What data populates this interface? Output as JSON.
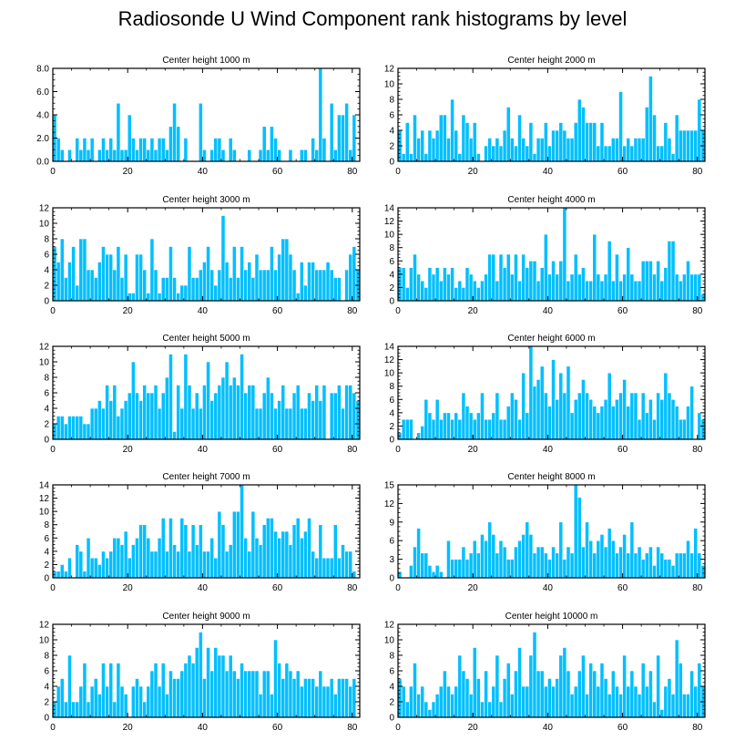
{
  "page_title": "Radiosonde U Wind Component rank histograms by level",
  "colors": {
    "bar": "#00bfff",
    "bar_edge": "#ffffff",
    "axis": "#000000"
  },
  "chart_data": [
    {
      "type": "bar",
      "title": "Center height 1000 m",
      "xlim": [
        0,
        82
      ],
      "ylim": [
        0,
        8
      ],
      "yticks": [
        0,
        2,
        4,
        6,
        8
      ],
      "ytick_labels": [
        "0.0",
        "2.0",
        "4.0",
        "6.0",
        "8.0"
      ],
      "xticks": [
        0,
        20,
        40,
        60,
        80
      ],
      "values": [
        4,
        2,
        1,
        0,
        1,
        0,
        2,
        1,
        2,
        1,
        2,
        0,
        1,
        2,
        1,
        2,
        1,
        5,
        1,
        1,
        4,
        2,
        1,
        2,
        2,
        1,
        2,
        1,
        2,
        2,
        1,
        3,
        5,
        3,
        0,
        2,
        0,
        0,
        0,
        5,
        1,
        0,
        1,
        2,
        2,
        1,
        0,
        2,
        1,
        0,
        0,
        0,
        1,
        0,
        0,
        1,
        3,
        1,
        3,
        2,
        1,
        0,
        0,
        1,
        0,
        0,
        1,
        1,
        0,
        2,
        1,
        8,
        2,
        0,
        5,
        1,
        4,
        4,
        5,
        1,
        4,
        0
      ]
    },
    {
      "type": "bar",
      "title": "Center height 2000 m",
      "xlim": [
        0,
        82
      ],
      "ylim": [
        0,
        12
      ],
      "yticks": [
        0,
        2,
        4,
        6,
        8,
        10,
        12
      ],
      "ytick_labels": [
        "0",
        "2",
        "4",
        "6",
        "8",
        "10",
        "12"
      ],
      "xticks": [
        0,
        20,
        40,
        60,
        80
      ],
      "values": [
        4,
        1,
        5,
        1,
        6,
        3,
        4,
        1,
        4,
        3,
        4,
        6,
        6,
        3,
        8,
        4,
        1,
        6,
        5,
        3,
        5,
        1,
        0,
        2,
        3,
        2,
        3,
        2,
        4,
        7,
        3,
        2,
        6,
        3,
        2,
        5,
        1,
        3,
        3,
        5,
        2,
        4,
        4,
        5,
        4,
        3,
        3,
        5,
        8,
        7,
        5,
        5,
        5,
        2,
        5,
        2,
        2,
        3,
        3,
        9,
        2,
        3,
        2,
        3,
        3,
        3,
        7,
        11,
        6,
        2,
        2,
        5,
        3,
        1,
        6,
        4,
        4,
        4,
        4,
        4,
        8,
        4
      ]
    },
    {
      "type": "bar",
      "title": "Center height 3000 m",
      "xlim": [
        0,
        82
      ],
      "ylim": [
        0,
        12
      ],
      "yticks": [
        0,
        2,
        4,
        6,
        8,
        10,
        12
      ],
      "ytick_labels": [
        "0",
        "2",
        "4",
        "6",
        "8",
        "10",
        "12"
      ],
      "xticks": [
        0,
        20,
        40,
        60,
        80
      ],
      "values": [
        7,
        5,
        8,
        3,
        5,
        7,
        2,
        8,
        8,
        4,
        4,
        3,
        5,
        7,
        6,
        6,
        4,
        7,
        3,
        6,
        1,
        1,
        6,
        6,
        4,
        1,
        8,
        4,
        1,
        3,
        3,
        7,
        3,
        1,
        2,
        2,
        7,
        3,
        3,
        4,
        5,
        7,
        4,
        2,
        4,
        11,
        5,
        3,
        7,
        3,
        7,
        4,
        5,
        3,
        6,
        4,
        4,
        4,
        7,
        4,
        6,
        8,
        8,
        6,
        4,
        1,
        5,
        2,
        5,
        5,
        4,
        4,
        4,
        5,
        4,
        3,
        3,
        0,
        4,
        6,
        7,
        4
      ]
    },
    {
      "type": "bar",
      "title": "Center height 4000 m",
      "xlim": [
        0,
        82
      ],
      "ylim": [
        0,
        14
      ],
      "yticks": [
        0,
        2,
        4,
        6,
        8,
        10,
        12,
        14
      ],
      "ytick_labels": [
        "0",
        "2",
        "4",
        "6",
        "8",
        "10",
        "12",
        "14"
      ],
      "xticks": [
        0,
        20,
        40,
        60,
        80
      ],
      "values": [
        5,
        5,
        2,
        5,
        7,
        4,
        3,
        2,
        5,
        4,
        5,
        3,
        5,
        4,
        5,
        2,
        3,
        2,
        5,
        4,
        3,
        2,
        3,
        4,
        7,
        7,
        3,
        7,
        5,
        7,
        4,
        7,
        3,
        7,
        5,
        6,
        6,
        3,
        5,
        10,
        4,
        6,
        4,
        6,
        14,
        3,
        4,
        7,
        4,
        5,
        3,
        3,
        10,
        4,
        3,
        4,
        9,
        3,
        7,
        3,
        4,
        8,
        4,
        3,
        3,
        6,
        6,
        6,
        4,
        6,
        3,
        5,
        9,
        9,
        4,
        3,
        4,
        6,
        4,
        4,
        4,
        1
      ]
    },
    {
      "type": "bar",
      "title": "Center height 5000 m",
      "xlim": [
        0,
        82
      ],
      "ylim": [
        0,
        12
      ],
      "yticks": [
        0,
        2,
        4,
        6,
        8,
        10,
        12
      ],
      "ytick_labels": [
        "0",
        "2",
        "4",
        "6",
        "8",
        "10",
        "12"
      ],
      "xticks": [
        0,
        20,
        40,
        60,
        80
      ],
      "values": [
        2,
        3,
        3,
        2,
        3,
        3,
        3,
        3,
        2,
        2,
        4,
        4,
        5,
        4,
        7,
        5,
        7,
        3,
        4,
        5,
        6,
        10,
        6,
        5,
        7,
        6,
        6,
        7,
        4,
        6,
        8,
        11,
        1,
        7,
        4,
        11,
        7,
        4,
        6,
        4,
        7,
        10,
        5,
        6,
        7,
        8,
        10,
        7,
        8,
        7,
        11,
        6,
        7,
        7,
        4,
        4,
        6,
        8,
        6,
        4,
        5,
        7,
        4,
        4,
        6,
        7,
        4,
        4,
        6,
        5,
        7,
        5,
        7,
        0,
        6,
        6,
        7,
        4,
        7,
        7,
        6,
        5
      ]
    },
    {
      "type": "bar",
      "title": "Center height 6000 m",
      "xlim": [
        0,
        82
      ],
      "ylim": [
        0,
        14
      ],
      "yticks": [
        0,
        2,
        4,
        6,
        8,
        10,
        12,
        14
      ],
      "ytick_labels": [
        "0",
        "2",
        "4",
        "6",
        "8",
        "10",
        "12",
        "14"
      ],
      "xticks": [
        0,
        20,
        40,
        60,
        80
      ],
      "values": [
        1,
        3,
        3,
        3,
        0,
        1,
        2,
        6,
        4,
        3,
        6,
        3,
        4,
        4,
        3,
        4,
        3,
        7,
        5,
        4,
        3,
        4,
        7,
        3,
        3,
        4,
        7,
        3,
        3,
        5,
        7,
        6,
        3,
        10,
        4,
        14,
        8,
        9,
        11,
        7,
        5,
        12,
        6,
        10,
        7,
        11,
        4,
        6,
        7,
        9,
        7,
        6,
        5,
        4,
        5,
        6,
        10,
        5,
        6,
        7,
        9,
        5,
        7,
        7,
        3,
        7,
        4,
        6,
        3,
        7,
        6,
        10,
        7,
        6,
        5,
        3,
        3,
        5,
        8,
        0,
        4,
        3
      ]
    },
    {
      "type": "bar",
      "title": "Center height 7000 m",
      "xlim": [
        0,
        82
      ],
      "ylim": [
        0,
        14
      ],
      "yticks": [
        0,
        2,
        4,
        6,
        8,
        10,
        12,
        14
      ],
      "ytick_labels": [
        "0",
        "2",
        "4",
        "6",
        "8",
        "10",
        "12",
        "14"
      ],
      "xticks": [
        0,
        20,
        40,
        60,
        80
      ],
      "values": [
        1,
        1,
        2,
        1,
        3,
        0,
        5,
        4,
        1,
        6,
        3,
        3,
        2,
        4,
        3,
        4,
        6,
        6,
        5,
        7,
        3,
        5,
        6,
        8,
        8,
        6,
        4,
        4,
        6,
        9,
        4,
        9,
        5,
        4,
        9,
        8,
        4,
        8,
        5,
        8,
        4,
        4,
        6,
        3,
        10,
        8,
        4,
        5,
        10,
        10,
        14,
        6,
        4,
        10,
        6,
        5,
        8,
        9,
        9,
        7,
        6,
        7,
        7,
        5,
        8,
        9,
        6,
        7,
        9,
        4,
        3,
        8,
        3,
        3,
        3,
        8,
        3,
        5,
        4,
        4,
        1,
        0
      ]
    },
    {
      "type": "bar",
      "title": "Center height 8000 m",
      "xlim": [
        0,
        82
      ],
      "ylim": [
        0,
        15
      ],
      "yticks": [
        0,
        3,
        6,
        9,
        12,
        15
      ],
      "ytick_labels": [
        "0",
        "3",
        "6",
        "9",
        "12",
        "15"
      ],
      "xticks": [
        0,
        20,
        40,
        60,
        80
      ],
      "values": [
        1,
        0,
        0,
        2,
        5,
        8,
        4,
        4,
        2,
        1,
        2,
        1,
        0,
        6,
        3,
        3,
        3,
        5,
        3,
        4,
        6,
        4,
        7,
        6,
        9,
        7,
        4,
        6,
        5,
        3,
        3,
        5,
        6,
        7,
        9,
        7,
        4,
        5,
        5,
        4,
        3,
        5,
        4,
        9,
        3,
        5,
        4,
        15,
        13,
        5,
        9,
        6,
        4,
        6,
        7,
        5,
        8,
        6,
        4,
        5,
        7,
        4,
        9,
        4,
        5,
        3,
        4,
        5,
        2,
        5,
        4,
        3,
        3,
        2,
        4,
        4,
        4,
        6,
        4,
        8,
        4,
        2
      ]
    },
    {
      "type": "bar",
      "title": "Center height 9000 m",
      "xlim": [
        0,
        82
      ],
      "ylim": [
        0,
        12
      ],
      "yticks": [
        0,
        2,
        4,
        6,
        8,
        10,
        12
      ],
      "ytick_labels": [
        "0",
        "2",
        "4",
        "6",
        "8",
        "10",
        "12"
      ],
      "xticks": [
        0,
        20,
        40,
        60,
        80
      ],
      "values": [
        2,
        4,
        5,
        2,
        8,
        2,
        2,
        4,
        7,
        2,
        4,
        5,
        3,
        7,
        4,
        7,
        2,
        7,
        4,
        3,
        0,
        4,
        5,
        4,
        2,
        4,
        6,
        7,
        4,
        7,
        3,
        6,
        5,
        5,
        6,
        7,
        8,
        7,
        9,
        11,
        5,
        9,
        6,
        9,
        8,
        8,
        6,
        8,
        6,
        5,
        7,
        6,
        6,
        6,
        6,
        3,
        6,
        6,
        3,
        10,
        7,
        5,
        7,
        6,
        5,
        6,
        4,
        5,
        5,
        5,
        4,
        6,
        4,
        4,
        5,
        3,
        5,
        5,
        5,
        4,
        5,
        0
      ]
    },
    {
      "type": "bar",
      "title": "Center height 10000 m",
      "xlim": [
        0,
        82
      ],
      "ylim": [
        0,
        12
      ],
      "yticks": [
        0,
        2,
        4,
        6,
        8,
        10,
        12
      ],
      "ytick_labels": [
        "0",
        "2",
        "4",
        "6",
        "8",
        "10",
        "12"
      ],
      "xticks": [
        0,
        20,
        40,
        60,
        80
      ],
      "values": [
        5,
        4,
        2,
        4,
        7,
        3,
        4,
        2,
        1,
        2,
        3,
        4,
        6,
        4,
        3,
        4,
        8,
        6,
        5,
        3,
        9,
        5,
        2,
        6,
        2,
        4,
        8,
        2,
        5,
        7,
        3,
        6,
        9,
        4,
        4,
        8,
        11,
        6,
        6,
        4,
        5,
        4,
        5,
        8,
        9,
        6,
        3,
        4,
        6,
        8,
        3,
        7,
        6,
        4,
        7,
        5,
        3,
        6,
        4,
        3,
        8,
        4,
        6,
        4,
        3,
        7,
        4,
        6,
        2,
        8,
        1,
        4,
        5,
        3,
        10,
        7,
        3,
        3,
        6,
        4,
        7,
        4
      ]
    }
  ]
}
